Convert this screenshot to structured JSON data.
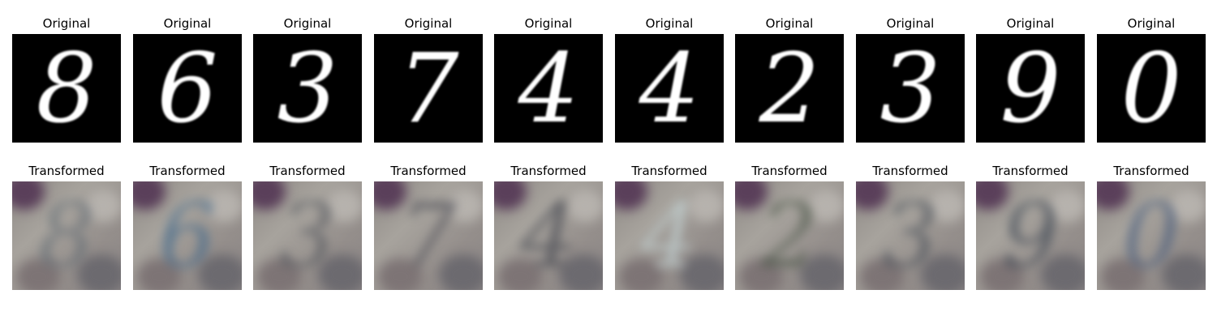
{
  "row_titles": {
    "original": "Original",
    "transformed": "Transformed"
  },
  "samples": [
    {
      "digit": "8",
      "tint": "#5a6670"
    },
    {
      "digit": "6",
      "tint": "#2f5f8a"
    },
    {
      "digit": "3",
      "tint": "#4a4f57"
    },
    {
      "digit": "7",
      "tint": "#3a3c48"
    },
    {
      "digit": "4",
      "tint": "#2f3440"
    },
    {
      "digit": "4",
      "tint": "#cfe3e6"
    },
    {
      "digit": "2",
      "tint": "#3b4a3a"
    },
    {
      "digit": "3",
      "tint": "#3e4752"
    },
    {
      "digit": "9",
      "tint": "#2c3848"
    },
    {
      "digit": "0",
      "tint": "#35507a"
    }
  ],
  "colors": {
    "original_bg": "#000000",
    "stroke": "#ffffff",
    "title_text": "#000000"
  }
}
